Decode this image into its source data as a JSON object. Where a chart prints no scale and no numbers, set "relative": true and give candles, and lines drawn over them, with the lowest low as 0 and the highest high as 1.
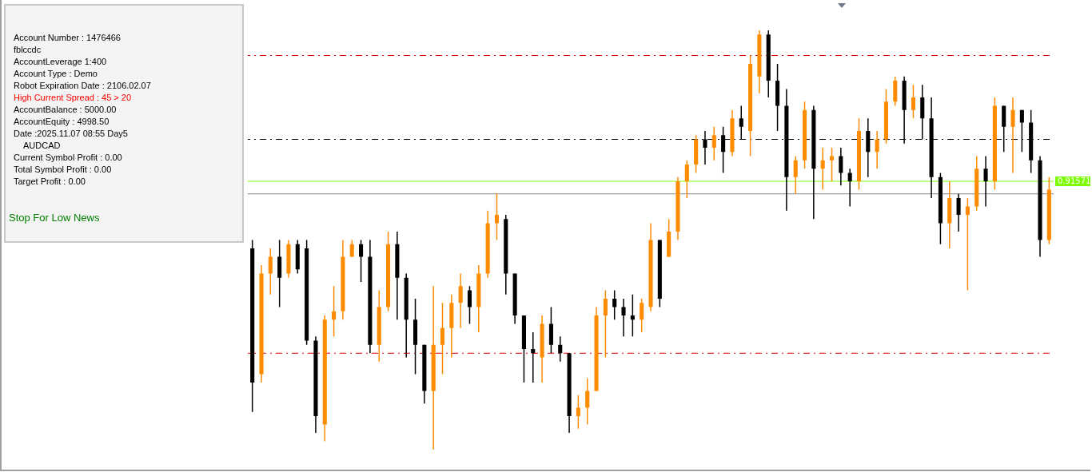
{
  "chart_data": {
    "type": "candlestick",
    "relative": true,
    "categories": [
      null,
      null,
      null,
      null,
      null,
      null,
      null,
      null,
      null,
      null,
      null,
      null,
      null,
      null,
      null,
      null,
      null,
      null,
      null,
      null,
      null,
      null,
      null,
      null,
      null,
      null,
      null,
      null,
      null,
      null,
      null,
      null,
      null,
      null,
      null,
      null,
      null,
      null,
      null,
      null,
      null,
      null,
      null,
      null,
      null,
      null,
      null,
      null,
      null,
      null,
      null,
      null,
      null,
      null,
      null,
      null,
      null,
      null,
      null,
      null,
      null,
      null,
      null,
      null,
      null,
      null,
      null,
      null,
      null,
      null,
      null,
      null,
      null,
      null,
      null,
      null,
      null,
      null,
      null,
      null,
      null,
      null,
      null,
      null,
      null,
      null,
      null,
      null,
      null
    ],
    "ohlc": [
      [
        0.48,
        0.5,
        0.09,
        0.16
      ],
      [
        0.18,
        0.44,
        0.16,
        0.42
      ],
      [
        0.42,
        0.48,
        0.37,
        0.46
      ],
      [
        0.46,
        0.5,
        0.34,
        0.41
      ],
      [
        0.42,
        0.5,
        0.41,
        0.49
      ],
      [
        0.49,
        0.5,
        0.42,
        0.43
      ],
      [
        0.48,
        0.5,
        0.25,
        0.26
      ],
      [
        0.26,
        0.27,
        0.04,
        0.08
      ],
      [
        0.06,
        0.32,
        0.02,
        0.31
      ],
      [
        0.31,
        0.39,
        0.27,
        0.33
      ],
      [
        0.33,
        0.5,
        0.31,
        0.46
      ],
      [
        0.46,
        0.5,
        0.46,
        0.49
      ],
      [
        0.49,
        0.5,
        0.4,
        0.46
      ],
      [
        0.46,
        0.5,
        0.23,
        0.25
      ],
      [
        0.25,
        0.38,
        0.21,
        0.34
      ],
      [
        0.34,
        0.52,
        0.33,
        0.49
      ],
      [
        0.49,
        0.52,
        0.31,
        0.41
      ],
      [
        0.41,
        0.42,
        0.22,
        0.31
      ],
      [
        0.31,
        0.36,
        0.18,
        0.25
      ],
      [
        0.25,
        0.25,
        0.11,
        0.14
      ],
      [
        0.14,
        0.39,
        0.0,
        0.25
      ],
      [
        0.25,
        0.35,
        0.18,
        0.29
      ],
      [
        0.29,
        0.37,
        0.22,
        0.35
      ],
      [
        0.35,
        0.42,
        0.29,
        0.39
      ],
      [
        0.38,
        0.39,
        0.3,
        0.34
      ],
      [
        0.34,
        0.44,
        0.28,
        0.42
      ],
      [
        0.42,
        0.57,
        0.41,
        0.54
      ],
      [
        0.54,
        0.61,
        0.5,
        0.56
      ],
      [
        0.55,
        0.56,
        0.37,
        0.42
      ],
      [
        0.42,
        0.42,
        0.3,
        0.32
      ],
      [
        0.32,
        0.32,
        0.16,
        0.24
      ],
      [
        0.24,
        0.28,
        0.16,
        0.23
      ],
      [
        0.22,
        0.32,
        0.16,
        0.3
      ],
      [
        0.3,
        0.34,
        0.23,
        0.25
      ],
      [
        0.25,
        0.27,
        0.21,
        0.23
      ],
      [
        0.23,
        0.23,
        0.04,
        0.08
      ],
      [
        0.08,
        0.13,
        0.05,
        0.1
      ],
      [
        0.1,
        0.17,
        0.06,
        0.14
      ],
      [
        0.14,
        0.34,
        0.14,
        0.32
      ],
      [
        0.32,
        0.38,
        0.22,
        0.36
      ],
      [
        0.36,
        0.38,
        0.31,
        0.34
      ],
      [
        0.34,
        0.36,
        0.27,
        0.32
      ],
      [
        0.32,
        0.37,
        0.27,
        0.31
      ],
      [
        0.31,
        0.36,
        0.28,
        0.35
      ],
      [
        0.34,
        0.54,
        0.33,
        0.5
      ],
      [
        0.5,
        0.5,
        0.34,
        0.36
      ],
      [
        0.46,
        0.55,
        0.46,
        0.52
      ],
      [
        0.52,
        0.65,
        0.5,
        0.64
      ],
      [
        0.64,
        0.69,
        0.6,
        0.68
      ],
      [
        0.68,
        0.75,
        0.66,
        0.74
      ],
      [
        0.74,
        0.76,
        0.68,
        0.72
      ],
      [
        0.72,
        0.77,
        0.69,
        0.75
      ],
      [
        0.75,
        0.77,
        0.66,
        0.71
      ],
      [
        0.71,
        0.81,
        0.7,
        0.79
      ],
      [
        0.79,
        0.82,
        0.74,
        0.77
      ],
      [
        0.76,
        0.94,
        0.7,
        0.92
      ],
      [
        0.89,
        1.0,
        0.85,
        0.99
      ],
      [
        0.99,
        1.0,
        0.84,
        0.88
      ],
      [
        0.88,
        0.92,
        0.76,
        0.82
      ],
      [
        0.82,
        0.86,
        0.57,
        0.65
      ],
      [
        0.65,
        0.7,
        0.61,
        0.69
      ],
      [
        0.69,
        0.83,
        0.67,
        0.81
      ],
      [
        0.81,
        0.82,
        0.55,
        0.67
      ],
      [
        0.67,
        0.72,
        0.62,
        0.69
      ],
      [
        0.69,
        0.72,
        0.64,
        0.7
      ],
      [
        0.7,
        0.72,
        0.63,
        0.66
      ],
      [
        0.66,
        0.67,
        0.58,
        0.64
      ],
      [
        0.64,
        0.79,
        0.62,
        0.76
      ],
      [
        0.76,
        0.79,
        0.65,
        0.71
      ],
      [
        0.71,
        0.76,
        0.67,
        0.74
      ],
      [
        0.74,
        0.86,
        0.73,
        0.83
      ],
      [
        0.83,
        0.89,
        0.82,
        0.88
      ],
      [
        0.88,
        0.89,
        0.73,
        0.81
      ],
      [
        0.81,
        0.87,
        0.79,
        0.84
      ],
      [
        0.84,
        0.87,
        0.74,
        0.79
      ],
      [
        0.79,
        0.84,
        0.6,
        0.65
      ],
      [
        0.65,
        0.66,
        0.49,
        0.54
      ],
      [
        0.54,
        0.64,
        0.48,
        0.6
      ],
      [
        0.6,
        0.61,
        0.52,
        0.56
      ],
      [
        0.56,
        0.6,
        0.38,
        0.58
      ],
      [
        0.58,
        0.7,
        0.57,
        0.67
      ],
      [
        0.67,
        0.7,
        0.58,
        0.64
      ],
      [
        0.64,
        0.84,
        0.62,
        0.82
      ],
      [
        0.82,
        0.82,
        0.71,
        0.77
      ],
      [
        0.77,
        0.84,
        0.66,
        0.81
      ],
      [
        0.81,
        0.81,
        0.71,
        0.78
      ],
      [
        0.78,
        0.81,
        0.66,
        0.69
      ],
      [
        0.69,
        0.7,
        0.46,
        0.5
      ],
      [
        0.5,
        0.65,
        0.49,
        0.62
      ]
    ],
    "colors": [
      "#000000",
      "#ff8c00",
      "#ff8c00",
      "#000000",
      "#ff8c00",
      "#000000",
      "#000000",
      "#000000",
      "#ff8c00",
      "#ff8c00",
      "#ff8c00",
      "#ff8c00",
      "#000000",
      "#000000",
      "#ff8c00",
      "#ff8c00",
      "#000000",
      "#000000",
      "#000000",
      "#000000",
      "#ff8c00",
      "#ff8c00",
      "#ff8c00",
      "#ff8c00",
      "#000000",
      "#ff8c00",
      "#ff8c00",
      "#ff8c00",
      "#000000",
      "#000000",
      "#000000",
      "#000000",
      "#ff8c00",
      "#000000",
      "#000000",
      "#000000",
      "#ff8c00",
      "#ff8c00",
      "#ff8c00",
      "#ff8c00",
      "#000000",
      "#000000",
      "#000000",
      "#ff8c00",
      "#ff8c00",
      "#000000",
      "#ff8c00",
      "#ff8c00",
      "#ff8c00",
      "#ff8c00",
      "#000000",
      "#ff8c00",
      "#000000",
      "#ff8c00",
      "#000000",
      "#ff8c00",
      "#ff8c00",
      "#000000",
      "#000000",
      "#000000",
      "#ff8c00",
      "#ff8c00",
      "#000000",
      "#ff8c00",
      "#ff8c00",
      "#000000",
      "#000000",
      "#ff8c00",
      "#000000",
      "#ff8c00",
      "#ff8c00",
      "#ff8c00",
      "#000000",
      "#ff8c00",
      "#000000",
      "#000000",
      "#000000",
      "#ff8c00",
      "#000000",
      "#ff8c00",
      "#ff8c00",
      "#000000",
      "#ff8c00",
      "#000000",
      "#ff8c00",
      "#000000",
      "#000000",
      "#000000",
      "#ff8c00"
    ],
    "ref_lines": [
      {
        "axis": "y",
        "value": 0.94,
        "color": "#e00000",
        "line_style": "dashed"
      },
      {
        "axis": "y",
        "value": 0.74,
        "color": "#000000",
        "line_style": "dashed"
      },
      {
        "axis": "y",
        "value": 0.64,
        "color": "#7cfc00"
      },
      {
        "axis": "y",
        "value": 0.61,
        "color": "#808890"
      },
      {
        "axis": "y",
        "value": 0.23,
        "color": "#e00000",
        "line_style": "dashed"
      }
    ],
    "annotations": [
      "Account Number : 1476466",
      "fblccdc",
      "AccountLeverage 1:400",
      "Account Type : Demo",
      "Robot Expiration Date : 2106.02.07",
      "High Current Spread : 45 > 20",
      "AccountBalance : 5000.00",
      "AccountEquity : 4998.50",
      "Date :2025.11.07 08:55 Day5",
      "AUDCAD",
      "Current Symbol Profit : 0.00",
      "Total Symbol Profit : 0.00",
      "Target Profit : 0.00",
      "Stop For Low News",
      "0.91571"
    ],
    "legend": false
  }
}
